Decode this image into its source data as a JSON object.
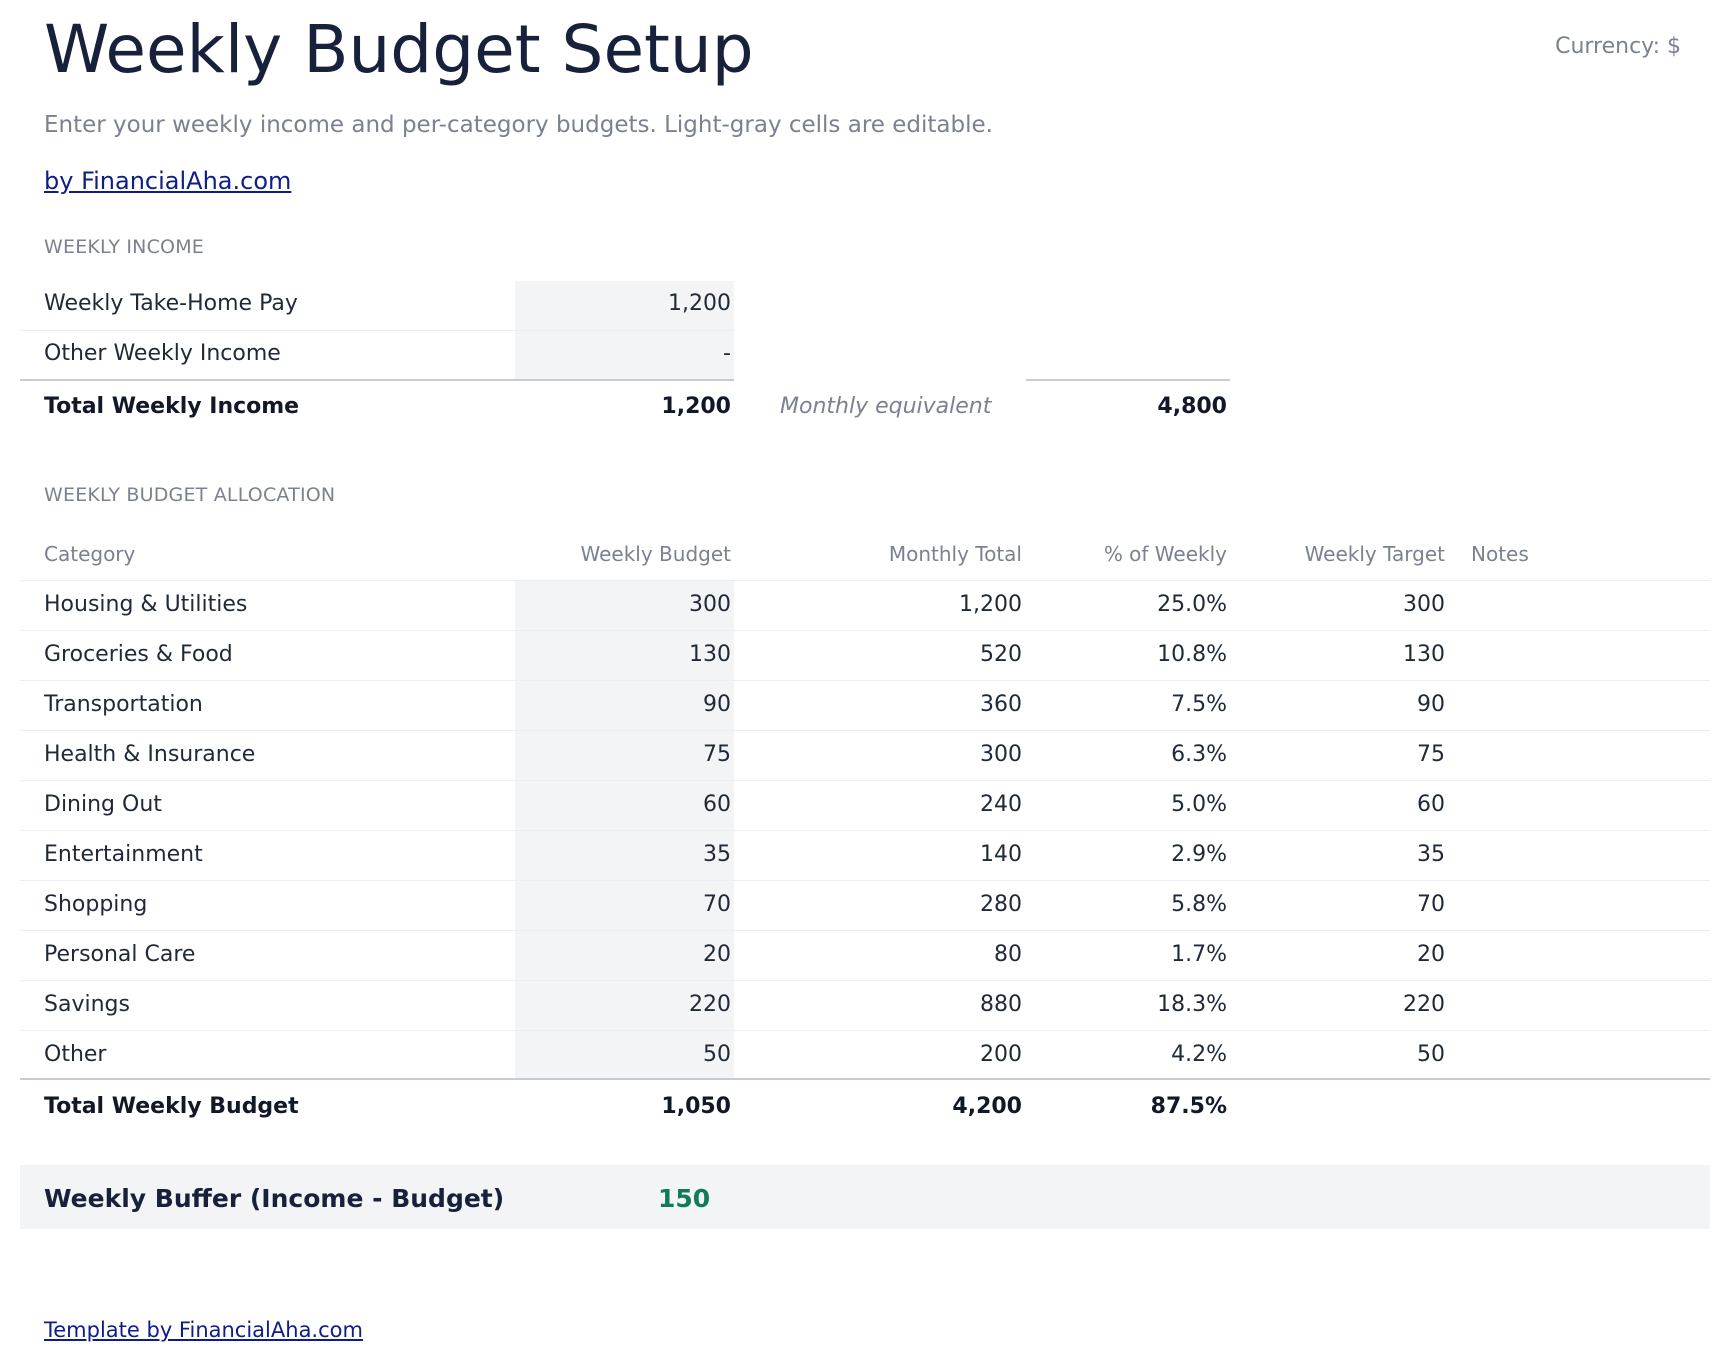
{
  "header": {
    "title": "Weekly Budget Setup",
    "currency": "Currency: $",
    "subtitle": "Enter your weekly income and per-category budgets. Light-gray cells are editable.",
    "by_link": "by FinancialAha.com"
  },
  "income": {
    "section_label": "WEEKLY INCOME",
    "rows": [
      {
        "label": "Weekly Take-Home Pay",
        "value": "1,200"
      },
      {
        "label": "Other Weekly Income",
        "value": "-"
      }
    ],
    "total_label": "Total Weekly Income",
    "total_value": "1,200",
    "monthly_label": "Monthly equivalent",
    "monthly_value": "4,800"
  },
  "allocation": {
    "section_label": "WEEKLY BUDGET ALLOCATION",
    "columns": [
      "Category",
      "Weekly Budget",
      "Monthly Total",
      "% of Weekly",
      "Weekly Target",
      "Notes"
    ],
    "rows": [
      {
        "category": "Housing & Utilities",
        "weekly": "300",
        "monthly": "1,200",
        "pct": "25.0%",
        "target": "300",
        "notes": ""
      },
      {
        "category": "Groceries & Food",
        "weekly": "130",
        "monthly": "520",
        "pct": "10.8%",
        "target": "130",
        "notes": ""
      },
      {
        "category": "Transportation",
        "weekly": "90",
        "monthly": "360",
        "pct": "7.5%",
        "target": "90",
        "notes": ""
      },
      {
        "category": "Health & Insurance",
        "weekly": "75",
        "monthly": "300",
        "pct": "6.3%",
        "target": "75",
        "notes": ""
      },
      {
        "category": "Dining Out",
        "weekly": "60",
        "monthly": "240",
        "pct": "5.0%",
        "target": "60",
        "notes": ""
      },
      {
        "category": "Entertainment",
        "weekly": "35",
        "monthly": "140",
        "pct": "2.9%",
        "target": "35",
        "notes": ""
      },
      {
        "category": "Shopping",
        "weekly": "70",
        "monthly": "280",
        "pct": "5.8%",
        "target": "70",
        "notes": ""
      },
      {
        "category": "Personal Care",
        "weekly": "20",
        "monthly": "80",
        "pct": "1.7%",
        "target": "20",
        "notes": ""
      },
      {
        "category": "Savings",
        "weekly": "220",
        "monthly": "880",
        "pct": "18.3%",
        "target": "220",
        "notes": ""
      },
      {
        "category": "Other",
        "weekly": "50",
        "monthly": "200",
        "pct": "4.2%",
        "target": "50",
        "notes": ""
      }
    ],
    "total": {
      "label": "Total Weekly Budget",
      "weekly": "1,050",
      "monthly": "4,200",
      "pct": "87.5%"
    }
  },
  "buffer": {
    "label": "Weekly Buffer (Income - Budget)",
    "value": "150",
    "value_color": "#0f7b5a"
  },
  "footer": {
    "link": "Template by FinancialAha.com"
  }
}
